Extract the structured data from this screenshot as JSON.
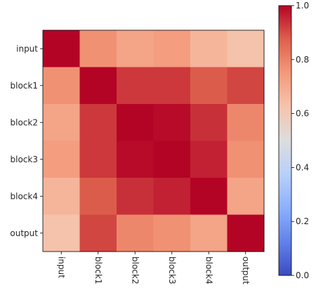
{
  "chart_data": {
    "type": "heatmap",
    "title": "",
    "xlabel": "",
    "ylabel": "",
    "x_labels": [
      "input",
      "block1",
      "block2",
      "block3",
      "block4",
      "output"
    ],
    "y_labels": [
      "input",
      "block1",
      "block2",
      "block3",
      "block4",
      "output"
    ],
    "values": [
      [
        1.0,
        0.77,
        0.72,
        0.74,
        0.67,
        0.63
      ],
      [
        0.77,
        1.0,
        0.93,
        0.93,
        0.88,
        0.91
      ],
      [
        0.72,
        0.93,
        1.0,
        0.99,
        0.94,
        0.79
      ],
      [
        0.74,
        0.93,
        0.99,
        1.0,
        0.96,
        0.77
      ],
      [
        0.67,
        0.88,
        0.94,
        0.96,
        1.0,
        0.72
      ],
      [
        0.63,
        0.91,
        0.79,
        0.77,
        0.72,
        1.0
      ]
    ],
    "colormap": "coolwarm",
    "vmin": 0.0,
    "vmax": 1.0,
    "colorbar_ticks": [
      "0.0",
      "0.2",
      "0.4",
      "0.6",
      "0.8",
      "1.0"
    ],
    "x_tick_rotation": "vertical",
    "colorbar": "right"
  }
}
